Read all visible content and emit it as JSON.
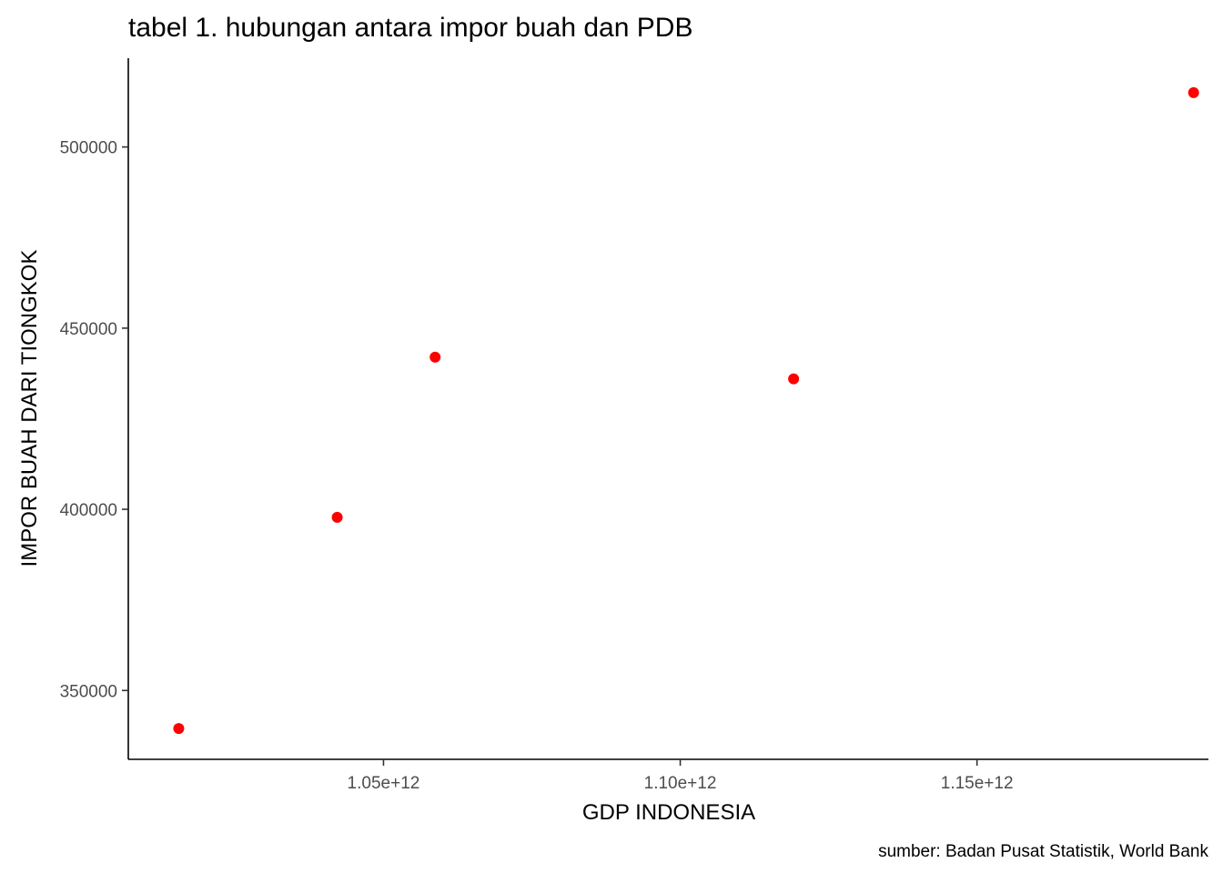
{
  "chart_data": {
    "type": "scatter",
    "title": "tabel 1. hubungan antara impor buah dan PDB",
    "xlabel": "GDP INDONESIA",
    "ylabel": "IMPOR BUAH DARI TIONGKOK",
    "caption": "sumber: Badan Pusat Statistik, World Bank",
    "xlim": [
      1007000000000,
      1189000000000
    ],
    "ylim": [
      331000,
      524500
    ],
    "x_ticks": [
      1050000000000,
      1100000000000,
      1150000000000
    ],
    "x_tick_labels": [
      "1.05e+12",
      "1.10e+12",
      "1.15e+12"
    ],
    "y_ticks": [
      350000,
      400000,
      450000,
      500000
    ],
    "y_tick_labels": [
      "350000",
      "400000",
      "450000",
      "500000"
    ],
    "grid": false,
    "point_color": "#ff0000",
    "points": [
      {
        "x": 1015500000000,
        "y": 339500
      },
      {
        "x": 1042200000000,
        "y": 397800
      },
      {
        "x": 1058700000000,
        "y": 442000
      },
      {
        "x": 1119100000000,
        "y": 436000
      },
      {
        "x": 1186500000000,
        "y": 515000
      }
    ]
  }
}
